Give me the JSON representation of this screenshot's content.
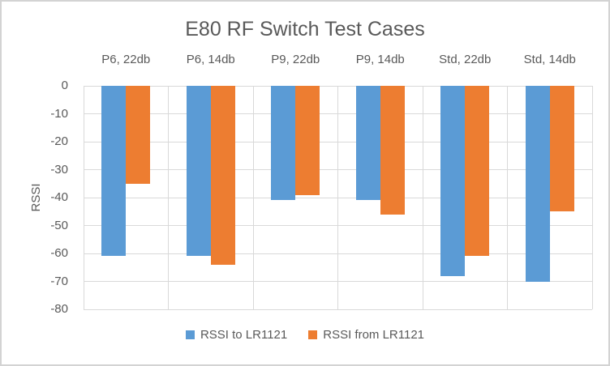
{
  "chart_data": {
    "type": "bar",
    "orientation": "vertical-negative",
    "title": "E80 RF Switch Test Cases",
    "xlabel": "",
    "ylabel": "RSSI",
    "categories": [
      "P6, 22db",
      "P6, 14db",
      "P9, 22db",
      "P9, 14db",
      "Std, 22db",
      "Std, 14db"
    ],
    "series": [
      {
        "name": "RSSI to LR1121",
        "color": "#5B9BD5",
        "values": [
          -61,
          -61,
          -41,
          -41,
          -68,
          -70
        ]
      },
      {
        "name": "RSSI from LR1121",
        "color": "#ED7D31",
        "values": [
          -35,
          -64,
          -39,
          -46,
          -61,
          -45
        ]
      }
    ],
    "ylim": [
      -80,
      0
    ],
    "ytick_step": 10,
    "yticks": [
      "0",
      "-10",
      "-20",
      "-30",
      "-40",
      "-50",
      "-60",
      "-70",
      "-80"
    ],
    "grid": true,
    "legend_position": "bottom",
    "category_labels_position": "top",
    "text_color": "#595959",
    "gridline_color": "#d9d9d9"
  }
}
